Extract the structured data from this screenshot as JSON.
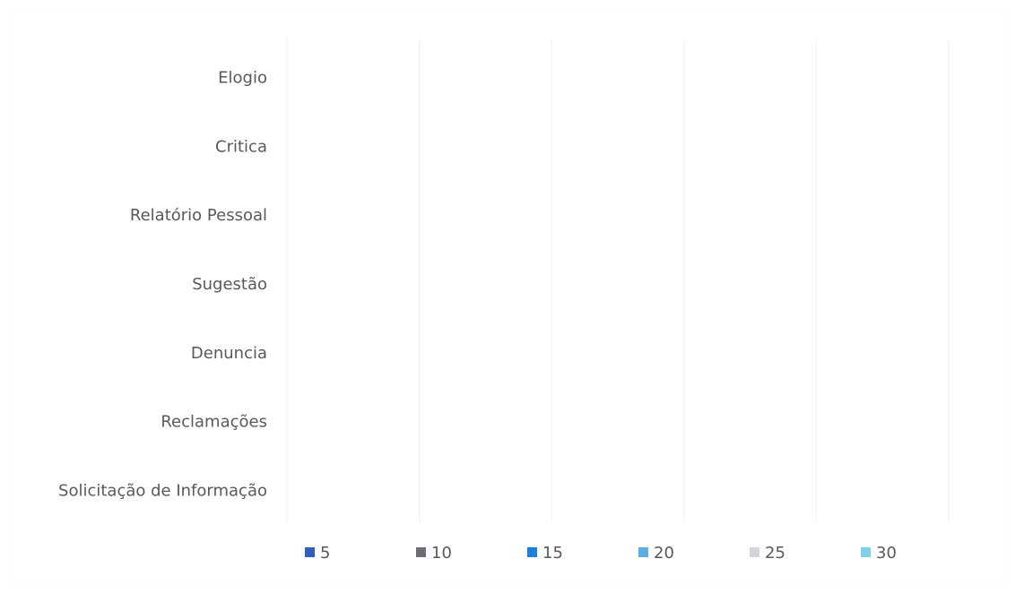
{
  "chart_data": {
    "type": "bar",
    "orientation": "horizontal",
    "categories": [
      "Elogio",
      "Critica",
      "Relatório Pessoal",
      "Sugestão",
      "Denuncia",
      "Reclamações",
      "Solicitação de Informação"
    ],
    "series": [
      {
        "name": "5",
        "color": "#2f5fb8",
        "values": [
          null,
          null,
          null,
          null,
          null,
          null,
          null
        ]
      },
      {
        "name": "10",
        "color": "#6d6f75",
        "values": [
          null,
          null,
          null,
          null,
          null,
          null,
          null
        ]
      },
      {
        "name": "15",
        "color": "#1f7fdc",
        "values": [
          null,
          null,
          null,
          null,
          null,
          null,
          null
        ]
      },
      {
        "name": "20",
        "color": "#5aaee0",
        "values": [
          null,
          null,
          null,
          null,
          null,
          null,
          null
        ]
      },
      {
        "name": "25",
        "color": "#d3d5d8",
        "values": [
          null,
          null,
          null,
          null,
          null,
          null,
          null
        ]
      },
      {
        "name": "30",
        "color": "#7fd0e8",
        "values": [
          null,
          null,
          null,
          null,
          null,
          null,
          null
        ]
      }
    ],
    "legend_position": "bottom",
    "grid": true,
    "gridline_count": 5,
    "xlim": [
      0,
      5
    ]
  }
}
